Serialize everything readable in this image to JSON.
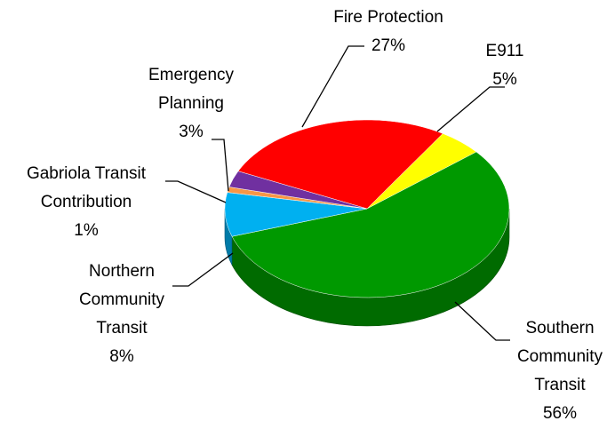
{
  "chart_data": {
    "type": "pie",
    "categories": [
      "Fire Protection",
      "E911",
      "Southern Community Transit",
      "Northern Community Transit",
      "Gabriola Transit Contribution",
      "Emergency Planning"
    ],
    "values": [
      27,
      5,
      56,
      8,
      1,
      3
    ],
    "value_labels": [
      "27%",
      "5%",
      "56%",
      "8%",
      "1%",
      "3%"
    ],
    "colors": [
      "#ff0000",
      "#ffff00",
      "#009900",
      "#00b0f0",
      "#f79646",
      "#7030a0"
    ]
  }
}
